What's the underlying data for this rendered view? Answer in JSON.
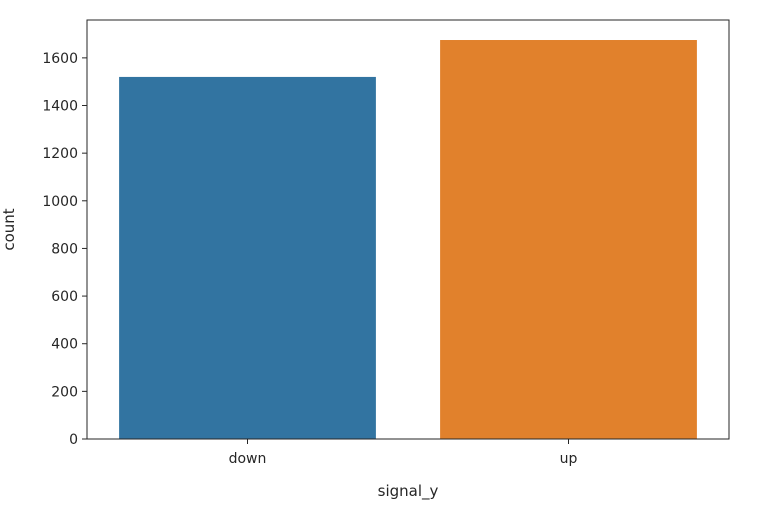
{
  "chart_data": {
    "type": "bar",
    "categories": [
      "down",
      "up"
    ],
    "values": [
      1520,
      1675
    ],
    "colors": [
      "#3274a1",
      "#e1812c"
    ],
    "title": "",
    "xlabel": "signal_y",
    "ylabel": "count",
    "ylim": [
      0,
      1759
    ],
    "yticks": [
      0,
      200,
      400,
      600,
      800,
      1000,
      1200,
      1400,
      1600
    ],
    "grid": false,
    "legend": "none"
  }
}
